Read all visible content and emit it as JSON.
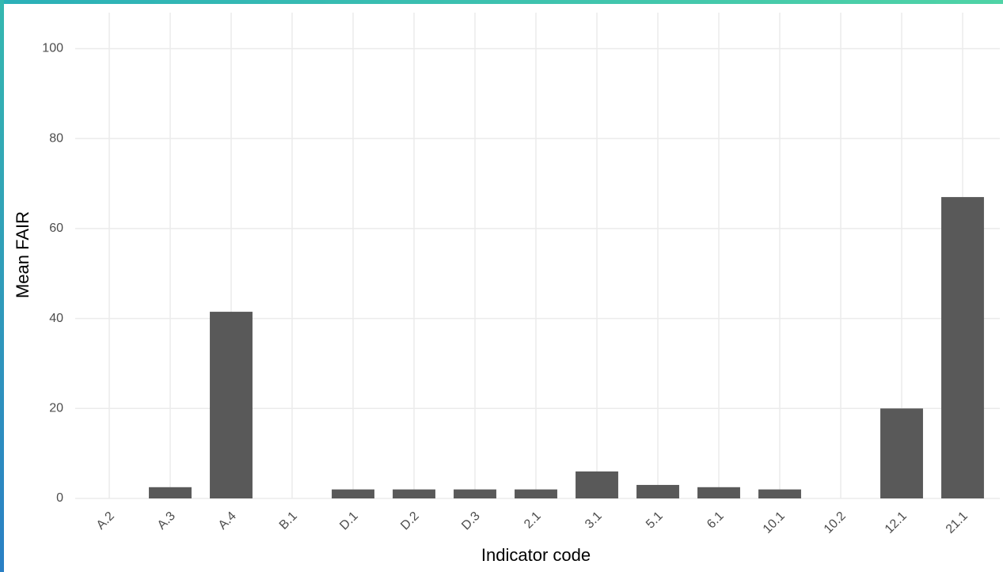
{
  "chart_data": {
    "type": "bar",
    "x_label": "Indicator code",
    "y_label": "Mean FAIR",
    "categories": [
      "A.2",
      "A.3",
      "A.4",
      "B.1",
      "D.1",
      "D.2",
      "D.3",
      "2.1",
      "3.1",
      "5.1",
      "6.1",
      "10.1",
      "10.2",
      "12.1",
      "21.1"
    ],
    "values": [
      0,
      2.5,
      41.5,
      0,
      2,
      2,
      2,
      2,
      6,
      3,
      2.5,
      2,
      0,
      20,
      67
    ],
    "color": "#595959",
    "ylim": [
      0,
      108
    ],
    "yticks": [
      0,
      20,
      40,
      60,
      80,
      100
    ],
    "grid": true
  }
}
